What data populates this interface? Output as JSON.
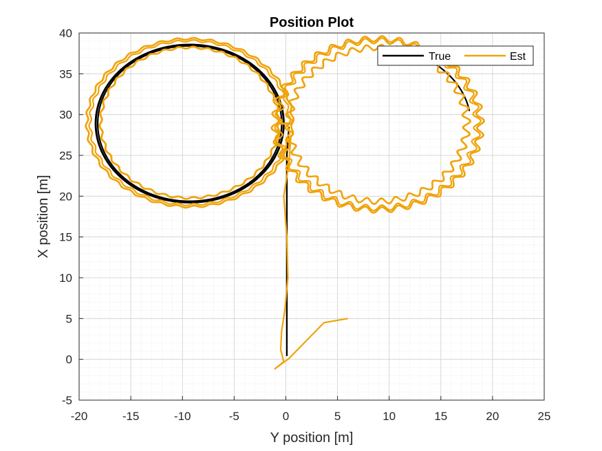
{
  "chart_data": {
    "type": "line",
    "title": "Position Plot",
    "xlabel": "Y position [m]",
    "ylabel": "X position [m]",
    "xlim": [
      -20,
      25
    ],
    "ylim": [
      -5,
      40
    ],
    "xticks": [
      -20,
      -15,
      -10,
      -5,
      0,
      5,
      10,
      15,
      20,
      25
    ],
    "yticks": [
      -5,
      0,
      5,
      10,
      15,
      20,
      25,
      30,
      35,
      40
    ],
    "grid": "minor",
    "legend_position": "top-right",
    "series": [
      {
        "name": "True",
        "color": "#000000",
        "approach": [
          [
            0.1,
            0.4
          ],
          [
            0.1,
            5
          ],
          [
            0.1,
            10
          ],
          [
            0.1,
            15
          ],
          [
            0.1,
            20
          ],
          [
            0.1,
            25
          ],
          [
            0.3,
            28.5
          ]
        ],
        "loops": [
          {
            "center": [
              -9.3,
              28.9
            ],
            "radius": [
              9.0,
              9.6
            ],
            "start_deg": 0,
            "laps": 3
          }
        ]
      },
      {
        "name": "Est",
        "color": "#f0a30a",
        "start": [
          [
            6,
            5
          ],
          [
            3.7,
            4.5
          ],
          [
            0.3,
            0.1
          ],
          [
            -1.1,
            -1.2
          ],
          [
            -0.2,
            -0.3
          ],
          [
            -0.5,
            1.2
          ],
          [
            -0.4,
            3.5
          ],
          [
            -0.1,
            6
          ],
          [
            0.2,
            10
          ],
          [
            0.1,
            15
          ],
          [
            -0.2,
            20
          ],
          [
            0.3,
            24
          ],
          [
            0.5,
            27.5
          ]
        ],
        "loops": [
          {
            "center": [
              -9.3,
              29.0
            ],
            "radius": [
              9.2,
              9.7
            ],
            "laps": 5
          },
          {
            "center": [
              8.9,
              28.8
            ],
            "radius": [
              9.2,
              9.9
            ],
            "laps": 5
          }
        ]
      }
    ]
  }
}
